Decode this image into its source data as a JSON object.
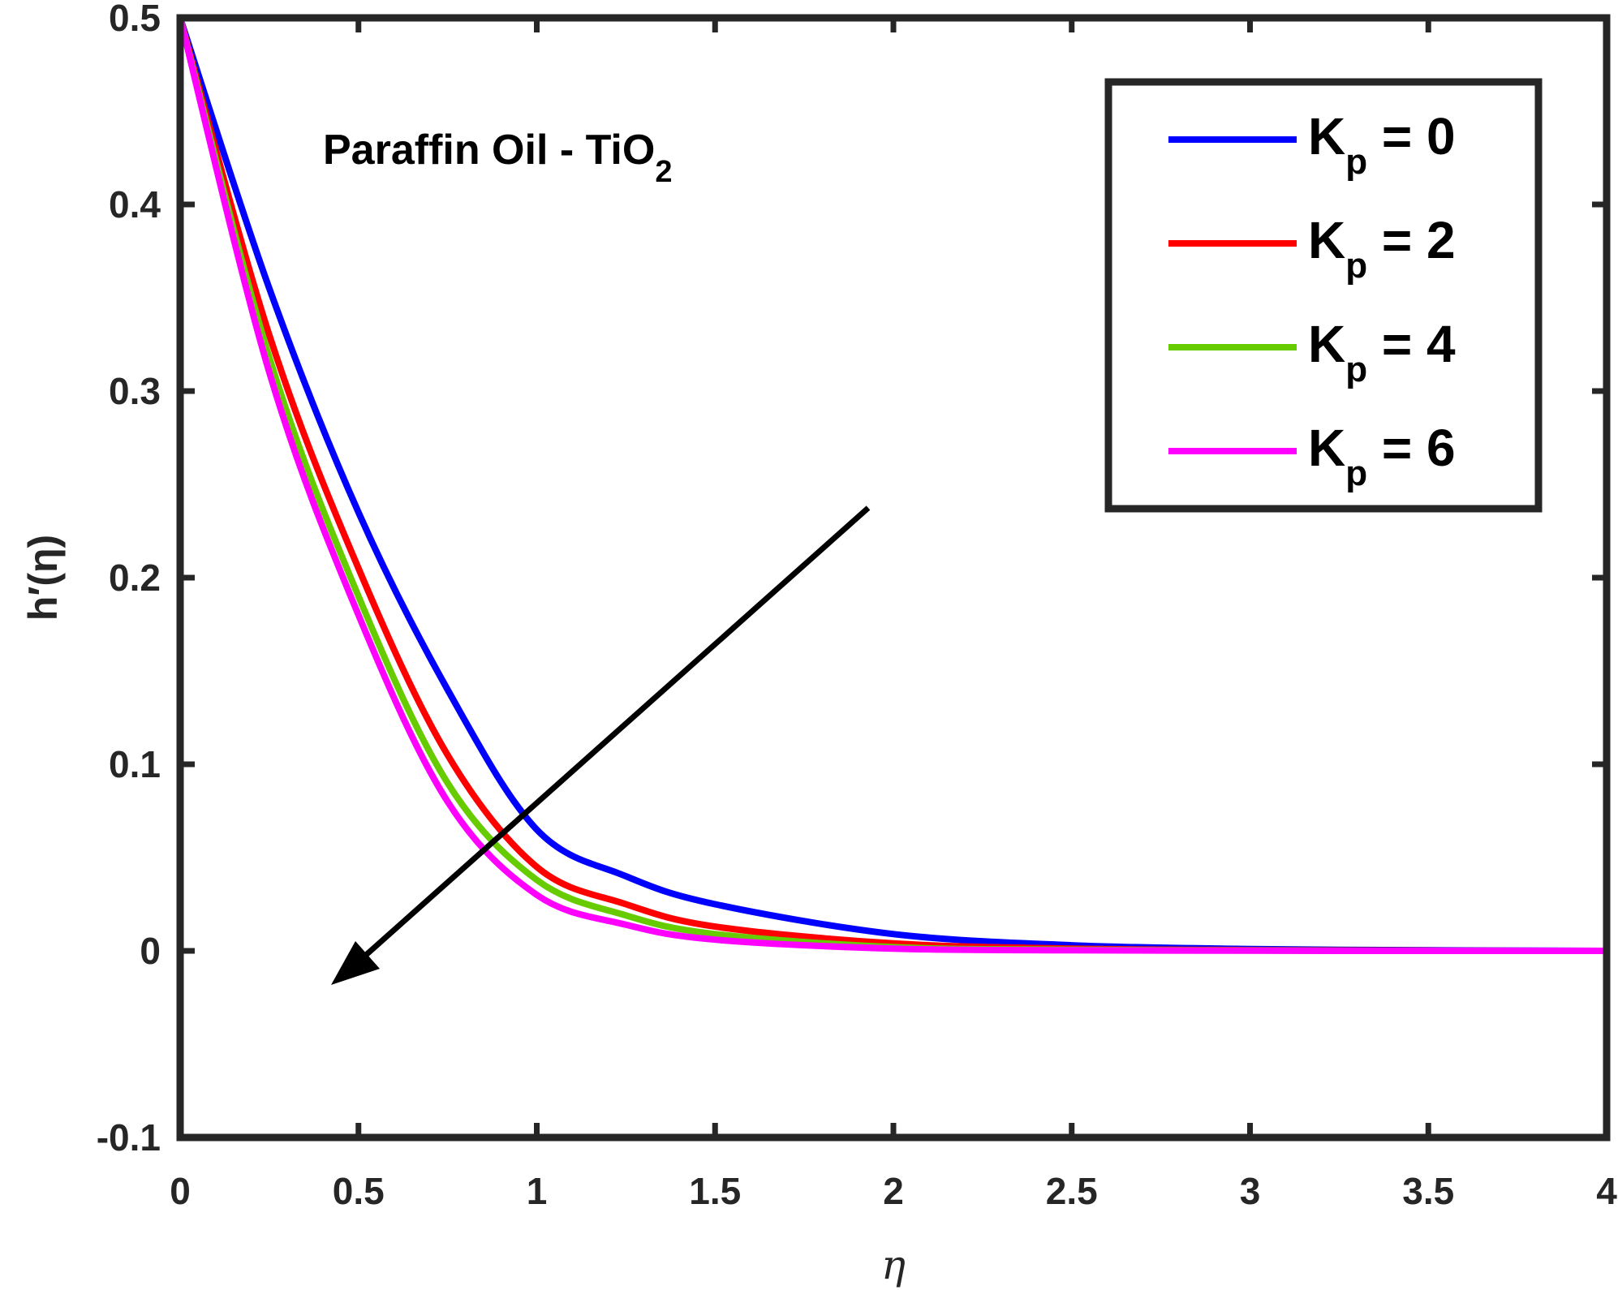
{
  "chart_data": {
    "type": "line",
    "title": "",
    "xlabel": "η",
    "ylabel": "h′(η)",
    "xlim": [
      0,
      4
    ],
    "ylim": [
      -0.1,
      0.5
    ],
    "xticks": [
      0,
      0.5,
      1,
      1.5,
      2,
      2.5,
      3,
      3.5,
      4
    ],
    "yticks": [
      -0.1,
      0,
      0.1,
      0.2,
      0.3,
      0.4,
      0.5
    ],
    "xtick_labels": [
      "0",
      "0.5",
      "1",
      "1.5",
      "2",
      "2.5",
      "3",
      "3.5",
      "4"
    ],
    "ytick_labels": [
      "-0.1",
      "0",
      "0.1",
      "0.2",
      "0.3",
      "0.4",
      "0.5"
    ],
    "grid": false,
    "legend_position": "top-right",
    "x": [
      0,
      0.25,
      0.5,
      0.75,
      1,
      1.25,
      1.5,
      2,
      2.5,
      3,
      3.5,
      4
    ],
    "series": [
      {
        "name": "0",
        "color": "#0000ff",
        "values": [
          0.5,
          0.355,
          0.235,
          0.14,
          0.065,
          0.04,
          0.025,
          0.009,
          0.003,
          0.001,
          0.0003,
          0.0
        ]
      },
      {
        "name": "2",
        "color": "#ff0000",
        "values": [
          0.5,
          0.33,
          0.205,
          0.105,
          0.045,
          0.025,
          0.013,
          0.004,
          0.0012,
          0.0004,
          0.0001,
          0.0
        ]
      },
      {
        "name": "4",
        "color": "#66cc00",
        "values": [
          0.5,
          0.318,
          0.19,
          0.09,
          0.038,
          0.019,
          0.009,
          0.002,
          0.0006,
          0.0002,
          0.0,
          0.0
        ]
      },
      {
        "name": "6",
        "color": "#ff00ff",
        "values": [
          0.5,
          0.31,
          0.18,
          0.08,
          0.03,
          0.014,
          0.006,
          0.0012,
          0.0003,
          0.0001,
          0.0,
          0.0
        ]
      }
    ],
    "legend": {
      "prefix": "K",
      "subscript": "p",
      "separator": " = "
    },
    "annotation": {
      "text": "Paraffin Oil - TiO",
      "subscript": "2",
      "arrow_direction": "toward lower-left (increasing K_p)"
    }
  },
  "colors": {
    "axis": "#262626",
    "arrow": "#000000",
    "background": "#ffffff"
  }
}
